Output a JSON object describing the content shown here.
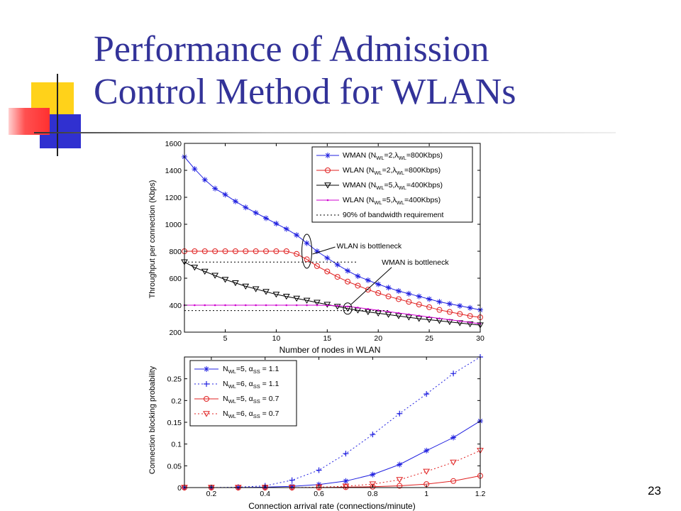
{
  "slide": {
    "title_line1": "Performance of Admission",
    "title_line2": "Control Method for WLANs",
    "page_number": "23"
  },
  "colors": {
    "title": "#333399",
    "blue": "#2020e0",
    "red": "#e02020",
    "black": "#000000",
    "magenta": "#d000d0"
  },
  "chart_data": [
    {
      "type": "line",
      "xlabel": "Number of nodes in WLAN",
      "ylabel": "Throughput per connection (Kbps)",
      "xlim": [
        1,
        30
      ],
      "ylim": [
        200,
        1600
      ],
      "xticks": [
        5,
        10,
        15,
        20,
        25,
        30
      ],
      "yticks": [
        200,
        400,
        600,
        800,
        1000,
        1200,
        1400,
        1600
      ],
      "legend_position": "top-right",
      "series": [
        {
          "name": "WMAN (N_WL=2, λ_WL=800Kbps)",
          "legend": {
            "main": "WMAN (N",
            "sub1": "WL",
            "mid": "=2,λ",
            "sub2": "WL",
            "end": "=800Kbps)"
          },
          "color": "#2020e0",
          "marker": "star",
          "dash": "",
          "x": [
            1,
            2,
            3,
            4,
            5,
            6,
            7,
            8,
            9,
            10,
            11,
            12,
            13,
            14,
            15,
            16,
            17,
            18,
            19,
            20,
            21,
            22,
            23,
            24,
            25,
            26,
            27,
            28,
            29,
            30
          ],
          "y": [
            1500,
            1410,
            1330,
            1265,
            1220,
            1170,
            1125,
            1085,
            1045,
            1005,
            965,
            920,
            860,
            800,
            750,
            700,
            655,
            615,
            585,
            555,
            530,
            505,
            485,
            465,
            445,
            425,
            410,
            395,
            380,
            365
          ]
        },
        {
          "name": "WLAN (N_WL=2, λ_WL=800Kbps)",
          "legend": {
            "main": "WLAN (N",
            "sub1": "WL",
            "mid": "=2,λ",
            "sub2": "WL",
            "end": "=800Kbps)"
          },
          "color": "#e02020",
          "marker": "circle",
          "dash": "",
          "x": [
            1,
            2,
            3,
            4,
            5,
            6,
            7,
            8,
            9,
            10,
            11,
            12,
            13,
            14,
            15,
            16,
            17,
            18,
            19,
            20,
            21,
            22,
            23,
            24,
            25,
            26,
            27,
            28,
            29,
            30
          ],
          "y": [
            800,
            800,
            800,
            800,
            800,
            800,
            800,
            800,
            800,
            800,
            800,
            780,
            740,
            690,
            650,
            610,
            575,
            545,
            515,
            490,
            465,
            445,
            425,
            405,
            385,
            365,
            350,
            335,
            320,
            310
          ]
        },
        {
          "name": "WMAN (N_WL=5, λ_WL=400Kbps)",
          "legend": {
            "main": "WMAN (N",
            "sub1": "WL",
            "mid": "=5,λ",
            "sub2": "WL",
            "end": "=400Kbps)"
          },
          "color": "#000000",
          "marker": "triangle-down",
          "dash": "",
          "x": [
            1,
            2,
            3,
            4,
            5,
            6,
            7,
            8,
            9,
            10,
            11,
            12,
            13,
            14,
            15,
            16,
            17,
            18,
            19,
            20,
            21,
            22,
            23,
            24,
            25,
            26,
            27,
            28,
            29,
            30
          ],
          "y": [
            720,
            680,
            650,
            620,
            590,
            565,
            540,
            520,
            500,
            480,
            465,
            450,
            435,
            420,
            405,
            390,
            375,
            362,
            350,
            340,
            330,
            320,
            310,
            300,
            292,
            284,
            276,
            268,
            260,
            252
          ]
        },
        {
          "name": "WLAN (N_WL=5, λ_WL=400Kbps)",
          "legend": {
            "main": "WLAN (N",
            "sub1": "WL",
            "mid": "=5,λ",
            "sub2": "WL",
            "end": "=400Kbps)"
          },
          "color": "#d000d0",
          "marker": "dot",
          "dash": "",
          "x": [
            1,
            2,
            3,
            4,
            5,
            6,
            7,
            8,
            9,
            10,
            11,
            12,
            13,
            14,
            15,
            16,
            17,
            18,
            19,
            20,
            21,
            22,
            23,
            24,
            25,
            26,
            27,
            28,
            29,
            30
          ],
          "y": [
            400,
            400,
            400,
            400,
            400,
            400,
            400,
            400,
            400,
            400,
            400,
            400,
            400,
            400,
            398,
            395,
            390,
            382,
            372,
            362,
            352,
            342,
            332,
            322,
            312,
            302,
            292,
            282,
            272,
            262
          ]
        },
        {
          "name": "90% of bandwidth requirement",
          "legend": {
            "main": "90% of bandwidth requirement",
            "sub1": "",
            "mid": "",
            "sub2": "",
            "end": ""
          },
          "color": "#000000",
          "marker": "",
          "dash": "2,3",
          "x": [
            1,
            18
          ],
          "y": [
            720,
            720
          ]
        },
        {
          "name": "",
          "legend": null,
          "color": "#000000",
          "marker": "",
          "dash": "2,3",
          "x": [
            1,
            21
          ],
          "y": [
            360,
            360
          ]
        }
      ],
      "annotations": [
        {
          "text": "WLAN is bottleneck",
          "x": 13,
          "y": 800
        },
        {
          "text": "WMAN is bottleneck",
          "x": 17,
          "y": 375
        }
      ]
    },
    {
      "type": "line",
      "xlabel": "Connection arrival rate (connections/minute)",
      "ylabel": "Connection blocking probability",
      "xlim": [
        0.1,
        1.2
      ],
      "ylim": [
        0,
        0.3
      ],
      "xticks": [
        0.2,
        0.4,
        0.6,
        0.8,
        1,
        1.2
      ],
      "xtick_labels": [
        "0.2",
        "0.4",
        "0.6",
        "0.8",
        "1",
        "1.2"
      ],
      "yticks": [
        0,
        0.05,
        0.1,
        0.15,
        0.2,
        0.25
      ],
      "ytick_labels": [
        "0",
        "0.05",
        "0.1",
        "0.15",
        "0.2",
        "0.25"
      ],
      "legend_position": "top-left",
      "series": [
        {
          "name": "N_WL=5, α_SS = 1.1",
          "legend": {
            "main": "N",
            "sub1": "WL",
            "mid": "=5, α",
            "sub2": "SS",
            "end": " = 1.1"
          },
          "color": "#2020e0",
          "marker": "star",
          "dash": "",
          "x": [
            0.1,
            0.2,
            0.3,
            0.4,
            0.5,
            0.6,
            0.7,
            0.8,
            0.9,
            1.0,
            1.1,
            1.2
          ],
          "y": [
            0,
            0,
            0,
            0.001,
            0.003,
            0.007,
            0.015,
            0.03,
            0.053,
            0.085,
            0.115,
            0.153
          ]
        },
        {
          "name": "N_WL=6, α_SS = 1.1",
          "legend": {
            "main": "N",
            "sub1": "WL",
            "mid": "=6, α",
            "sub2": "SS",
            "end": " = 1.1"
          },
          "color": "#2020e0",
          "marker": "plus",
          "dash": "2,3",
          "x": [
            0.1,
            0.2,
            0.3,
            0.4,
            0.5,
            0.6,
            0.7,
            0.8,
            0.9,
            1.0,
            1.1,
            1.2
          ],
          "y": [
            0,
            0,
            0.001,
            0.004,
            0.017,
            0.04,
            0.078,
            0.122,
            0.17,
            0.215,
            0.262,
            0.3
          ]
        },
        {
          "name": "N_WL=5, α_SS = 0.7",
          "legend": {
            "main": "N",
            "sub1": "WL",
            "mid": "=5, α",
            "sub2": "SS",
            "end": " = 0.7"
          },
          "color": "#e02020",
          "marker": "circle",
          "dash": "",
          "x": [
            0.1,
            0.2,
            0.3,
            0.4,
            0.5,
            0.6,
            0.7,
            0.8,
            0.9,
            1.0,
            1.1,
            1.2
          ],
          "y": [
            0,
            0,
            0,
            0,
            0,
            0,
            0.001,
            0.002,
            0.004,
            0.008,
            0.015,
            0.027
          ]
        },
        {
          "name": "N_WL=6, α_SS = 0.7",
          "legend": {
            "main": "N",
            "sub1": "WL",
            "mid": "=6, α",
            "sub2": "SS",
            "end": " = 0.7"
          },
          "color": "#e02020",
          "marker": "triangle-down",
          "dash": "2,3",
          "x": [
            0.1,
            0.2,
            0.3,
            0.4,
            0.5,
            0.6,
            0.7,
            0.8,
            0.9,
            1.0,
            1.1,
            1.2
          ],
          "y": [
            0,
            0,
            0,
            0,
            0,
            0.001,
            0.003,
            0.008,
            0.018,
            0.037,
            0.058,
            0.085
          ]
        }
      ]
    }
  ]
}
